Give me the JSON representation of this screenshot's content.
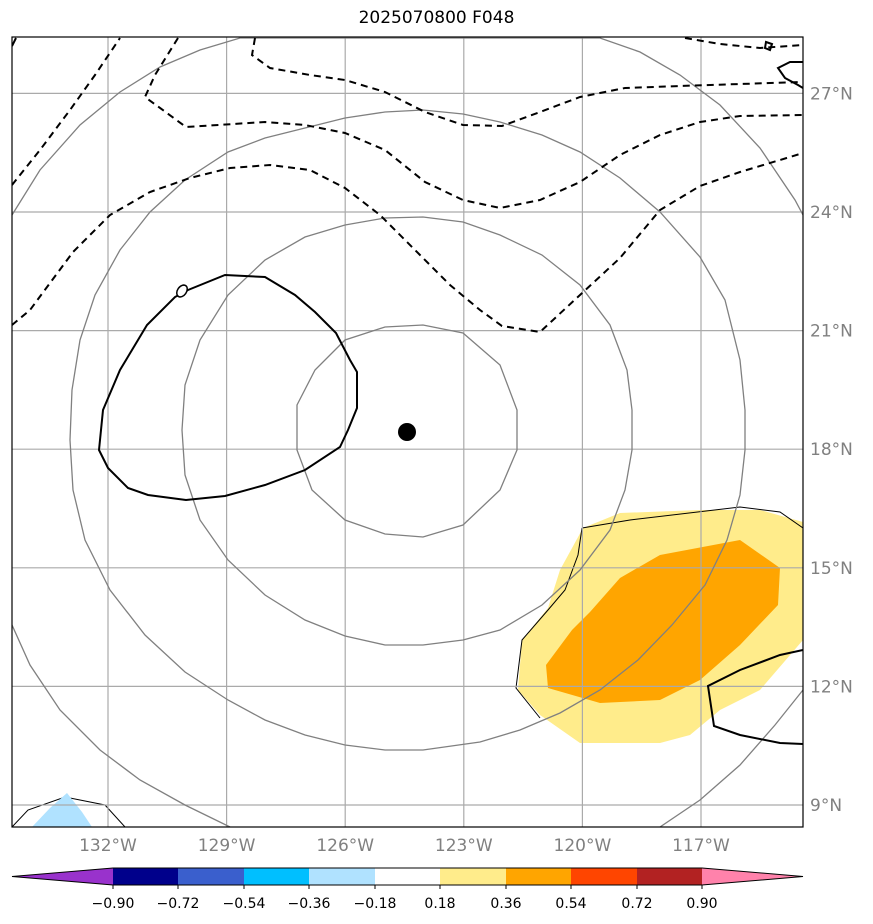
{
  "title": "2025070800 F048",
  "map": {
    "lon_ticks": [
      "132°W",
      "129°W",
      "126°W",
      "123°W",
      "120°W",
      "117°W"
    ],
    "lat_ticks": [
      "27°N",
      "24°N",
      "21°N",
      "18°N",
      "15°N",
      "12°N",
      "9°N"
    ],
    "lon_values": [
      -132,
      -129,
      -126,
      -123,
      -120,
      -117
    ],
    "lat_values": [
      27,
      24,
      21,
      18,
      15,
      12,
      9
    ],
    "center_marker": {
      "lon": -124.5,
      "lat": 18.4
    },
    "grid_color": "#aaaaaa",
    "range_ring_color": "#808080"
  },
  "colorbar": {
    "labels": [
      "−0.90",
      "−0.72",
      "−0.54",
      "−0.36",
      "−0.18",
      "0.18",
      "0.36",
      "0.54",
      "0.72",
      "0.90"
    ],
    "colors": [
      "#9932cc",
      "#00008b",
      "#3a5fcd",
      "#00bfff",
      "#b0e2ff",
      "#ffffff",
      "#ffec8b",
      "#ffa500",
      "#ff4500",
      "#b22222",
      "#ff82ab"
    ]
  }
}
